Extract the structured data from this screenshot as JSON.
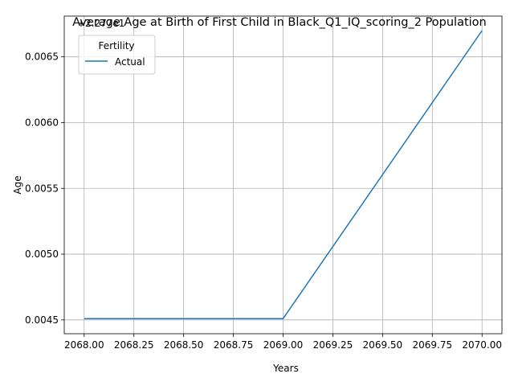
{
  "chart_data": {
    "type": "line",
    "title": "Average Age at Birth of First Child in Black_Q1_IQ_scoring_2 Population",
    "xlabel": "Years",
    "ylabel": "Age",
    "offset_text": "+2.277e1",
    "x": [
      2068,
      2069,
      2070
    ],
    "series": [
      {
        "name": "Actual",
        "color": "#1f77b4",
        "values": [
          0.00451,
          0.00451,
          0.0067
        ]
      }
    ],
    "xlim": [
      2067.9,
      2070.1
    ],
    "ylim": [
      0.004395,
      0.00681
    ],
    "x_ticks": [
      2068.0,
      2068.25,
      2068.5,
      2068.75,
      2069.0,
      2069.25,
      2069.5,
      2069.75,
      2070.0
    ],
    "x_tick_labels": [
      "2068.00",
      "2068.25",
      "2068.50",
      "2068.75",
      "2069.00",
      "2069.25",
      "2069.50",
      "2069.75",
      "2070.00"
    ],
    "y_ticks": [
      0.0045,
      0.005,
      0.0055,
      0.006,
      0.0065
    ],
    "y_tick_labels": [
      "0.0045",
      "0.0050",
      "0.0055",
      "0.0060",
      "0.0065"
    ],
    "grid": true,
    "legend": {
      "title": "Fertility",
      "placement": "top-left"
    }
  }
}
